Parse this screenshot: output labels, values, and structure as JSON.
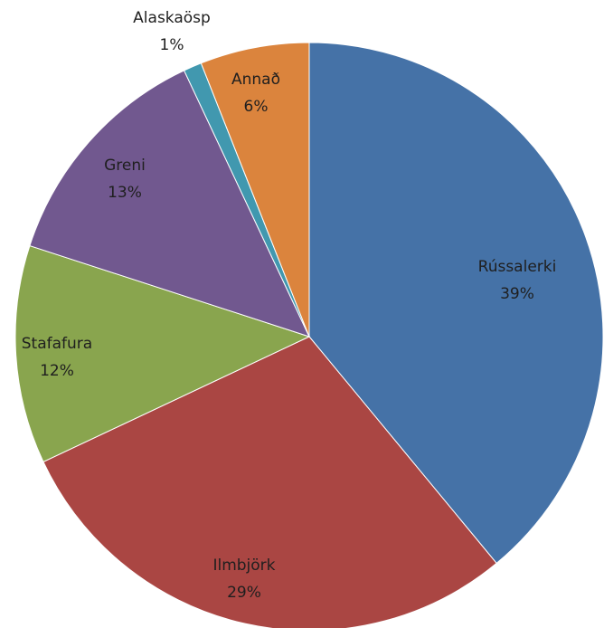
{
  "chart_data": {
    "type": "pie",
    "categories": [
      "Rússalerki",
      "Ilmbjörk",
      "Stafafura",
      "Greni",
      "Alaskaösp",
      "Annað"
    ],
    "values": [
      39,
      29,
      12,
      13,
      1,
      6
    ],
    "value_labels": [
      "39%",
      "29%",
      "12%",
      "13%",
      "1%",
      "6%"
    ],
    "colors": [
      "#4572a7",
      "#aa4643",
      "#89a54e",
      "#71588f",
      "#4198af",
      "#db843d"
    ]
  }
}
